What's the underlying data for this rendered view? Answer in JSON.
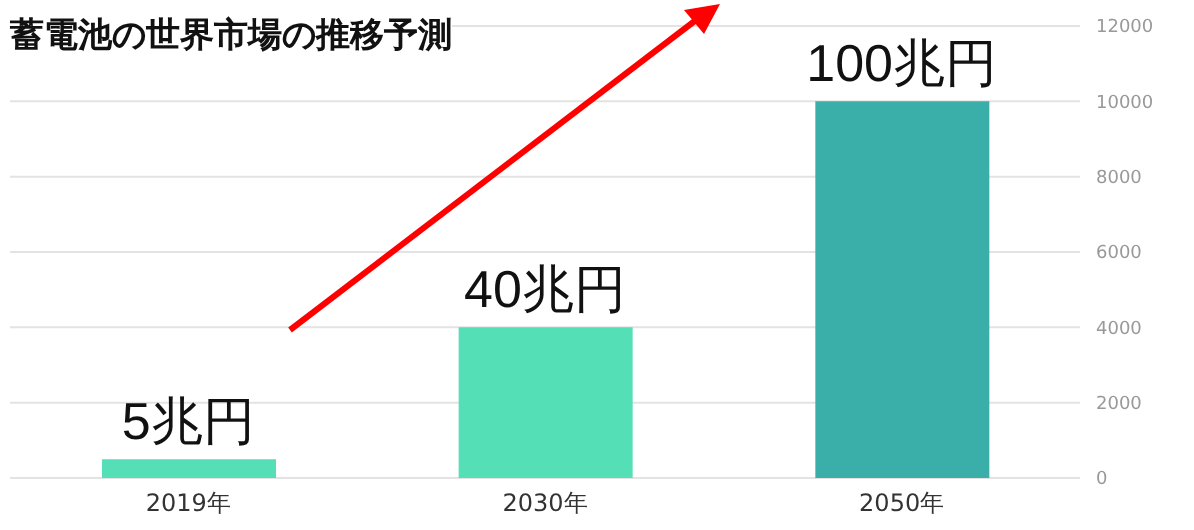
{
  "chart_data": {
    "type": "bar",
    "title": "蓄電池の世界市場の推移予測",
    "categories": [
      "2019年",
      "2030年",
      "2050年"
    ],
    "values": [
      500,
      4000,
      10000
    ],
    "colors": [
      "#54dfb7",
      "#54dfb7",
      "#3aafa9"
    ],
    "annotations": [
      {
        "text": "5兆円",
        "x": "2019年",
        "y": 500
      },
      {
        "text": "40兆円",
        "x": "2030年",
        "y": 4000
      },
      {
        "text": "100兆円",
        "x": "2050年",
        "y": 10000
      }
    ],
    "ylim": [
      0,
      12000
    ],
    "yticks": [
      0,
      2000,
      4000,
      6000,
      8000,
      10000,
      12000
    ],
    "grid": "y"
  }
}
